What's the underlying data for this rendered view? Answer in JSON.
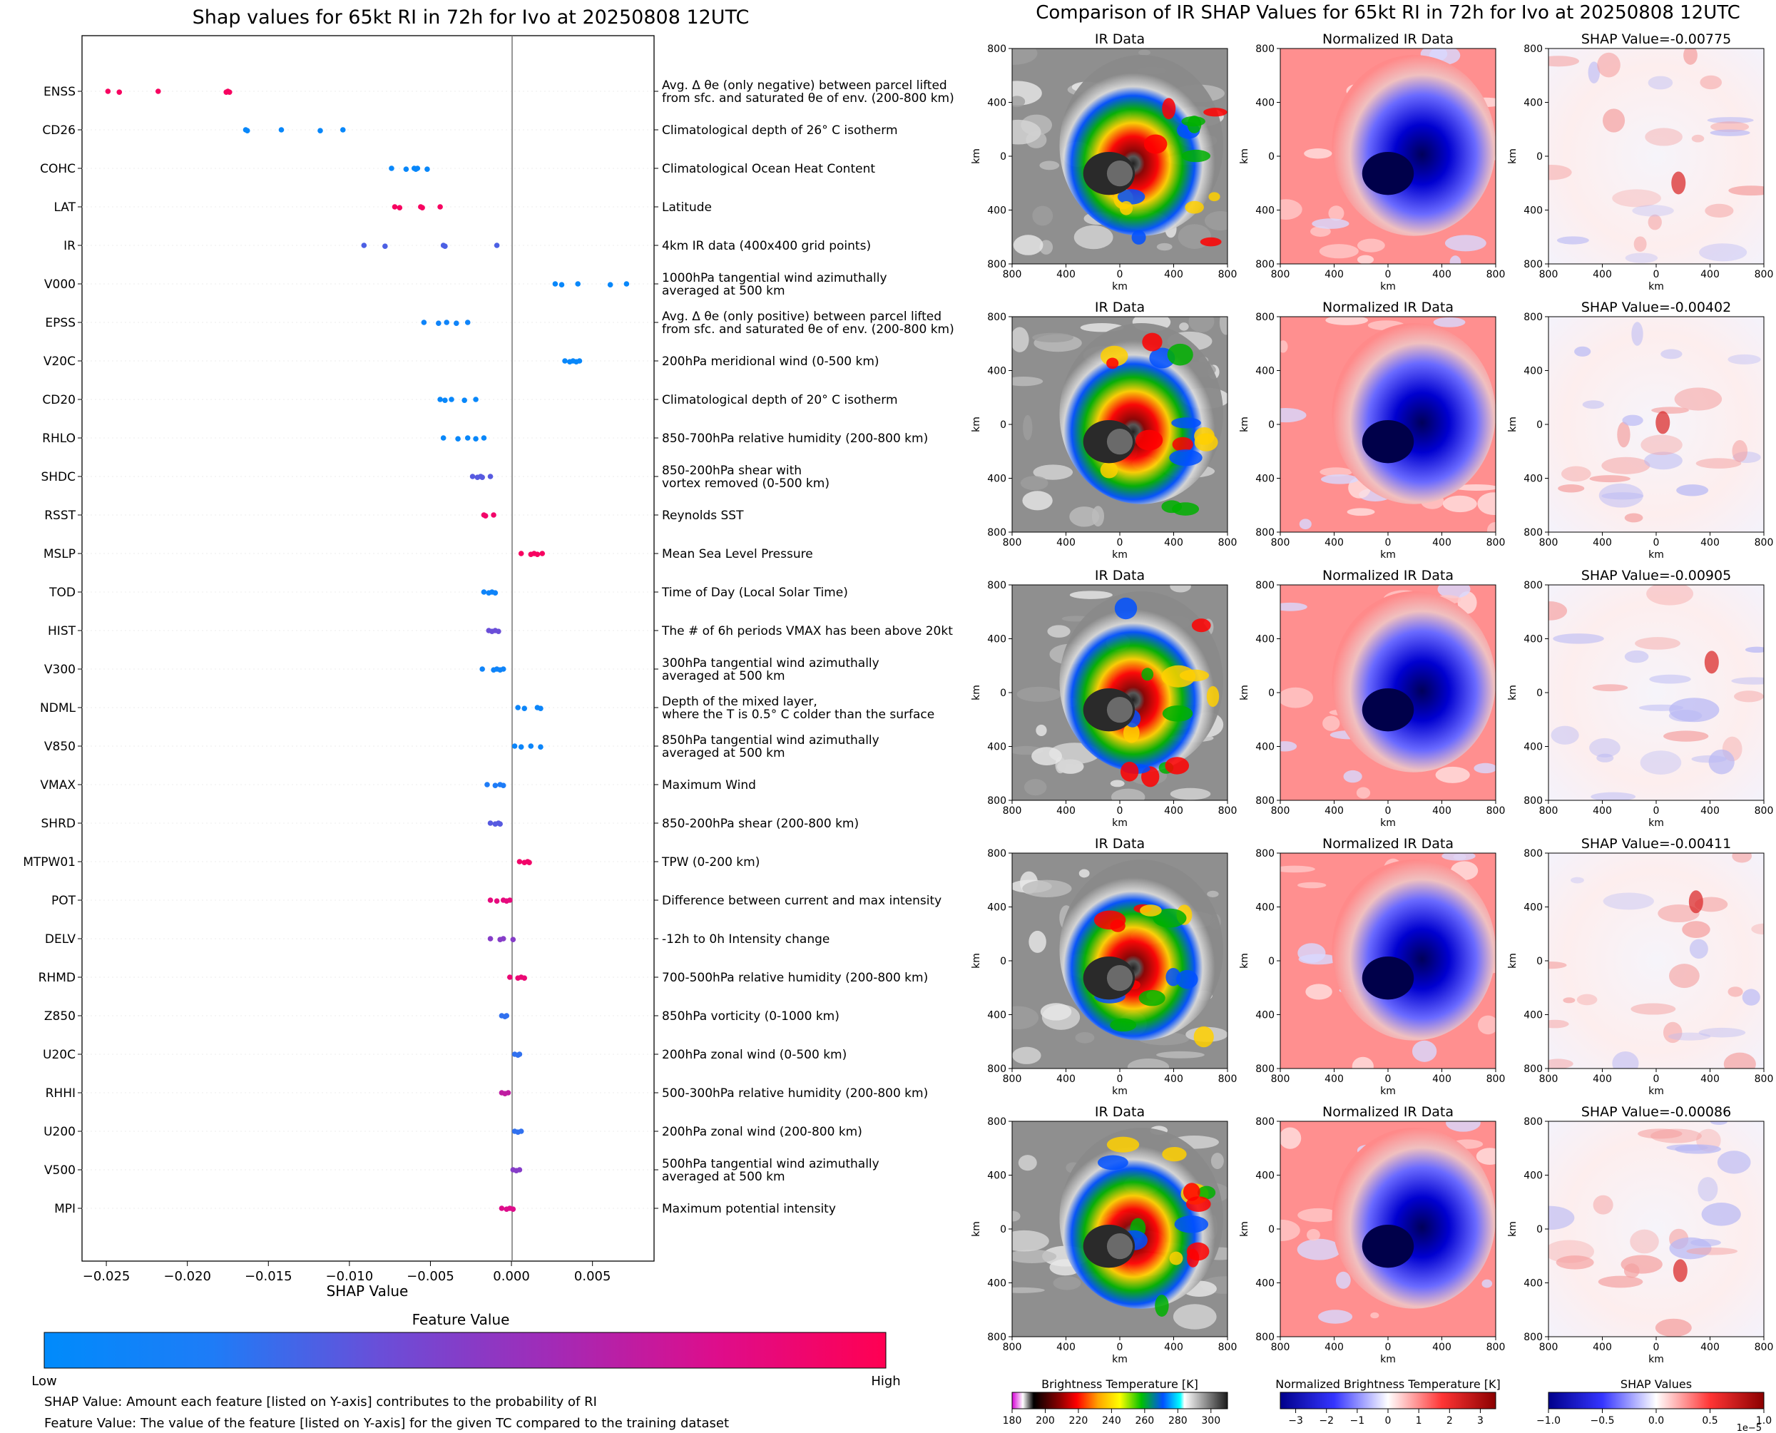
{
  "left_title": "Shap values for 65kt RI in 72h for Ivo at 20250808 12UTC",
  "right_title": "Comparison of IR SHAP Values for 65kt RI in 72h for Ivo at 20250808 12UTC",
  "chart_data": [
    {
      "type": "scatter",
      "title": "Shap values for 65kt RI in 72h for Ivo at 20250808 12UTC",
      "xlabel": "SHAP Value",
      "xlim": [
        -0.0265,
        0.0088
      ],
      "xticks": [
        -0.025,
        -0.02,
        -0.015,
        -0.01,
        -0.005,
        0.0,
        0.005
      ],
      "xtick_labels": [
        "−0.025",
        "−0.020",
        "−0.015",
        "−0.010",
        "−0.005",
        "0.000",
        "0.005"
      ],
      "colorbar": {
        "title": "Feature Value",
        "low_label": "Low",
        "high_label": "High",
        "low_color": "#008bfb",
        "high_color": "#ff0052"
      },
      "features": [
        {
          "name": "ENSS",
          "desc": [
            "Avg. Δ θe (only negative) between parcel lifted",
            "from sfc. and saturated θe of env. (200-800 km)"
          ],
          "fv": 0.95,
          "points": [
            -0.0249,
            -0.0242,
            -0.0218,
            -0.0176,
            -0.0175,
            -0.0174
          ]
        },
        {
          "name": "CD26",
          "desc": [
            "Climatological depth of 26° C isotherm"
          ],
          "fv": 0.05,
          "points": [
            -0.0164,
            -0.0163,
            -0.0142,
            -0.0118,
            -0.0104
          ]
        },
        {
          "name": "COHC",
          "desc": [
            "Climatological Ocean Heat Content"
          ],
          "fv": 0.05,
          "points": [
            -0.0074,
            -0.0065,
            -0.006,
            -0.0059,
            -0.0058,
            -0.0052
          ]
        },
        {
          "name": "LAT",
          "desc": [
            "Latitude"
          ],
          "fv": 0.95,
          "points": [
            -0.0072,
            -0.0069,
            -0.0056,
            -0.0055,
            -0.0044
          ]
        },
        {
          "name": "IR",
          "desc": [
            "4km IR data (400x400 grid points)"
          ],
          "fv": 0.32,
          "points": [
            -0.0091,
            -0.0078,
            -0.0042,
            -0.0041,
            -0.0009
          ]
        },
        {
          "name": "V000",
          "desc": [
            "1000hPa tangential wind azimuthally",
            "averaged at 500 km"
          ],
          "fv": 0.05,
          "points": [
            0.0027,
            0.0031,
            0.0041,
            0.0061,
            0.0071
          ]
        },
        {
          "name": "EPSS",
          "desc": [
            "Avg. Δ θe (only positive) between parcel lifted",
            "from sfc. and saturated θe of env. (200-800 km)"
          ],
          "fv": 0.1,
          "points": [
            -0.0054,
            -0.0045,
            -0.004,
            -0.0034,
            -0.0027
          ]
        },
        {
          "name": "V20C",
          "desc": [
            "200hPa meridional wind (0-500 km)"
          ],
          "fv": 0.05,
          "points": [
            0.0033,
            0.0036,
            0.0038,
            0.004,
            0.0042
          ]
        },
        {
          "name": "CD20",
          "desc": [
            "Climatological depth of 20° C isotherm"
          ],
          "fv": 0.05,
          "points": [
            -0.0044,
            -0.0041,
            -0.0037,
            -0.0029,
            -0.0022
          ]
        },
        {
          "name": "RHLO",
          "desc": [
            "850-700hPa relative humidity (200-800 km)"
          ],
          "fv": 0.05,
          "points": [
            -0.0042,
            -0.0033,
            -0.0027,
            -0.0022,
            -0.0017
          ]
        },
        {
          "name": "SHDC",
          "desc": [
            "850-200hPa shear with",
            "vortex removed (0-500 km)"
          ],
          "fv": 0.35,
          "points": [
            -0.0024,
            -0.0021,
            -0.0019,
            -0.0018,
            -0.0013
          ]
        },
        {
          "name": "RSST",
          "desc": [
            "Reynolds SST"
          ],
          "fv": 0.92,
          "points": [
            -0.0017,
            -0.0016,
            -0.0011
          ]
        },
        {
          "name": "MSLP",
          "desc": [
            "Mean Sea Level Pressure"
          ],
          "fv": 0.95,
          "points": [
            0.0006,
            0.0012,
            0.0014,
            0.0016,
            0.0019
          ]
        },
        {
          "name": "TOD",
          "desc": [
            "Time of Day (Local Solar Time)"
          ],
          "fv": 0.1,
          "points": [
            -0.0017,
            -0.0014,
            -0.0012,
            -0.001
          ]
        },
        {
          "name": "HIST",
          "desc": [
            "The # of 6h periods VMAX has been above 20kt"
          ],
          "fv": 0.4,
          "points": [
            -0.0014,
            -0.0012,
            -0.001,
            -0.0008
          ]
        },
        {
          "name": "V300",
          "desc": [
            "300hPa tangential wind azimuthally",
            "averaged at 500 km"
          ],
          "fv": 0.1,
          "points": [
            -0.0018,
            -0.0011,
            -0.0009,
            -0.0007,
            -0.0005
          ]
        },
        {
          "name": "NDML",
          "desc": [
            "Depth of the mixed layer,",
            "where the T is 0.5° C colder than the surface"
          ],
          "fv": 0.08,
          "points": [
            0.0004,
            0.0008,
            0.0016,
            0.0018
          ]
        },
        {
          "name": "V850",
          "desc": [
            "850hPa tangential wind azimuthally",
            "averaged at 500 km"
          ],
          "fv": 0.08,
          "points": [
            0.0002,
            0.0006,
            0.0012,
            0.0018
          ]
        },
        {
          "name": "VMAX",
          "desc": [
            "Maximum Wind"
          ],
          "fv": 0.2,
          "points": [
            -0.0015,
            -0.001,
            -0.0007,
            -0.0005
          ]
        },
        {
          "name": "SHRD",
          "desc": [
            "850-200hPa shear (200-800 km)"
          ],
          "fv": 0.35,
          "points": [
            -0.0013,
            -0.001,
            -0.0008,
            -0.0007
          ]
        },
        {
          "name": "MTPW01",
          "desc": [
            "TPW (0-200 km)"
          ],
          "fv": 0.92,
          "points": [
            0.0005,
            0.0008,
            0.001,
            0.0011
          ]
        },
        {
          "name": "POT",
          "desc": [
            "Difference between current and max intensity"
          ],
          "fv": 0.85,
          "points": [
            -0.0013,
            -0.0009,
            -0.0005,
            -0.0003,
            -0.0001
          ]
        },
        {
          "name": "DELV",
          "desc": [
            "-12h to 0h Intensity change"
          ],
          "fv": 0.5,
          "points": [
            -0.0013,
            -0.0007,
            -0.0005,
            0.0001
          ]
        },
        {
          "name": "RHMD",
          "desc": [
            "700-500hPa relative humidity (200-800 km)"
          ],
          "fv": 0.88,
          "points": [
            -0.0001,
            0.0004,
            0.0006,
            0.0008
          ]
        },
        {
          "name": "Z850",
          "desc": [
            "850hPa vorticity (0-1000 km)"
          ],
          "fv": 0.25,
          "points": [
            -0.0006,
            -0.0004,
            -0.0003
          ]
        },
        {
          "name": "U20C",
          "desc": [
            "200hPa zonal wind (0-500 km)"
          ],
          "fv": 0.25,
          "points": [
            0.0002,
            0.0004,
            0.0005
          ]
        },
        {
          "name": "RHHI",
          "desc": [
            "500-300hPa relative humidity (200-800 km)"
          ],
          "fv": 0.7,
          "points": [
            -0.0006,
            -0.0004,
            -0.0002
          ]
        },
        {
          "name": "U200",
          "desc": [
            "200hPa zonal wind (200-800 km)"
          ],
          "fv": 0.25,
          "points": [
            0.0002,
            0.0004,
            0.0006
          ]
        },
        {
          "name": "V500",
          "desc": [
            "500hPa tangential wind azimuthally",
            "averaged at 500 km"
          ],
          "fv": 0.5,
          "points": [
            0.0001,
            0.0003,
            0.0005
          ]
        },
        {
          "name": "MPI",
          "desc": [
            "Maximum potential intensity"
          ],
          "fv": 0.8,
          "points": [
            -0.0006,
            -0.0003,
            -0.0001,
            0.0001
          ]
        }
      ]
    },
    {
      "type": "heatmap",
      "title": "Comparison of IR SHAP Values for 65kt RI in 72h for Ivo at 20250808 12UTC",
      "column_titles": [
        "IR Data",
        "Normalized IR Data"
      ],
      "shap_titles": [
        "SHAP Value=-0.00775",
        "SHAP Value=-0.00402",
        "SHAP Value=-0.00905",
        "SHAP Value=-0.00411",
        "SHAP Value=-0.00086"
      ],
      "axis_label": "km",
      "axis_ticks": [
        "800",
        "400",
        "0",
        "400",
        "800"
      ],
      "colorbars": [
        {
          "title": "Brightness Temperature [K]",
          "ticks": [
            "180",
            "200",
            "220",
            "240",
            "260",
            "280",
            "300"
          ]
        },
        {
          "title": "Normalized Brightness Temperature [K]",
          "ticks": [
            "−3",
            "−2",
            "−1",
            "0",
            "1",
            "2",
            "3"
          ]
        },
        {
          "title": "SHAP Values",
          "ticks": [
            "−1.0",
            "−0.5",
            "0.0",
            "0.5",
            "1.0"
          ],
          "exponent": "1e−5"
        }
      ]
    }
  ],
  "footnotes": [
    "SHAP Value: Amount each feature [listed on Y-axis] contributes to the probability of RI",
    "Feature Value: The value of the feature [listed on Y-axis] for the given TC compared to the training dataset"
  ]
}
